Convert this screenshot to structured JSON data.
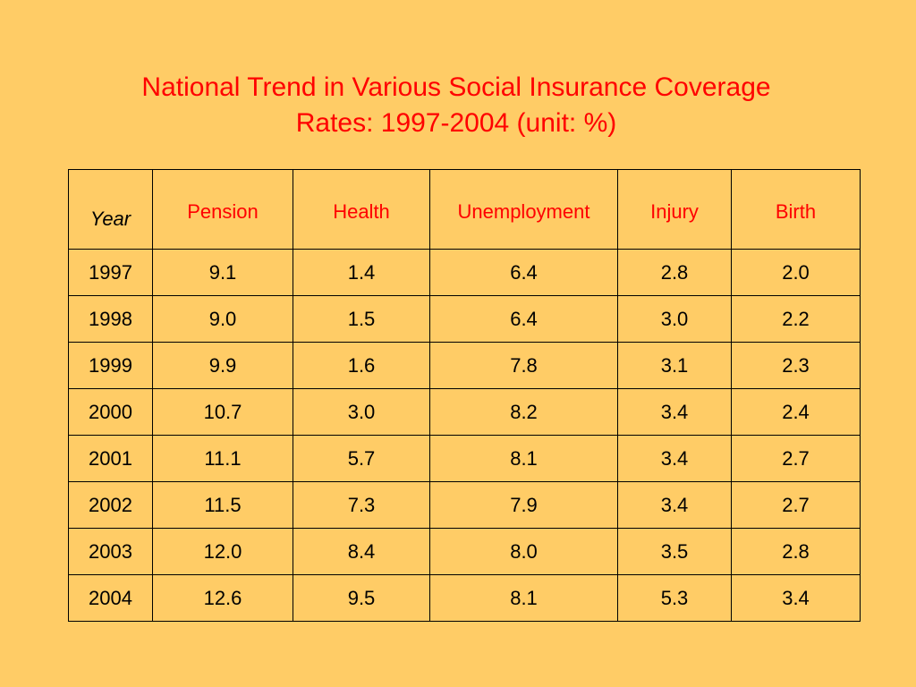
{
  "title": {
    "line1": "National Trend in Various Social Insurance Coverage",
    "line2": "Rates: 1997-2004 (unit: %)"
  },
  "colors": {
    "background": "#FFCC66",
    "title": "#FF0000",
    "header_text": "#FF0000",
    "body_text": "#000000"
  },
  "table": {
    "headers": [
      "Year",
      "Pension",
      "Health",
      "Unemployment",
      "Injury",
      "Birth"
    ],
    "rows": [
      [
        "1997",
        "9.1",
        "1.4",
        "6.4",
        "2.8",
        "2.0"
      ],
      [
        "1998",
        "9.0",
        "1.5",
        "6.4",
        "3.0",
        "2.2"
      ],
      [
        "1999",
        "9.9",
        "1.6",
        "7.8",
        "3.1",
        "2.3"
      ],
      [
        "2000",
        "10.7",
        "3.0",
        "8.2",
        "3.4",
        "2.4"
      ],
      [
        "2001",
        "11.1",
        "5.7",
        "8.1",
        "3.4",
        "2.7"
      ],
      [
        "2002",
        "11.5",
        "7.3",
        "7.9",
        "3.4",
        "2.7"
      ],
      [
        "2003",
        "12.0",
        "8.4",
        "8.0",
        "3.5",
        "2.8"
      ],
      [
        "2004",
        "12.6",
        "9.5",
        "8.1",
        "5.3",
        "3.4"
      ]
    ]
  }
}
